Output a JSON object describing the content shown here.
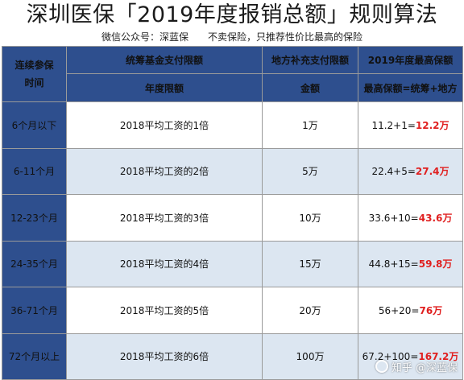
{
  "title": "深圳医保「2019年度报销总额」规则算法",
  "subtitle": "微信公众号：深蓝保　　不卖保险，只推荐性价比最高的保险",
  "table": {
    "header_top": {
      "period": "连续参保\n时间",
      "pool": "统筹基金支付限额",
      "local": "地方补充支付限额",
      "max": "2019年度最高保额"
    },
    "header_sub": {
      "pool": "年度限额",
      "local": "金额",
      "max": "最高保额=统筹+地方"
    },
    "rows": [
      {
        "period": "6个月以下",
        "pool": "2018平均工资的1倍",
        "local": "1万",
        "calc": "11.2+1=",
        "result": "12.2万"
      },
      {
        "period": "6-11个月",
        "pool": "2018平均工资的2倍",
        "local": "5万",
        "calc": "22.4+5=",
        "result": "27.4万"
      },
      {
        "period": "12-23个月",
        "pool": "2018平均工资的3倍",
        "local": "10万",
        "calc": "33.6+10=",
        "result": "43.6万"
      },
      {
        "period": "24-35个月",
        "pool": "2018平均工资的4倍",
        "local": "15万",
        "calc": "44.8+15=",
        "result": "59.8万"
      },
      {
        "period": "36-71个月",
        "pool": "2018平均工资的5倍",
        "local": "20万",
        "calc": "56+20=",
        "result": "76万"
      },
      {
        "period": "72个月以上",
        "pool": "2018平均工资的6倍",
        "local": "100万",
        "calc": "67.2+100=",
        "result": "167.2万"
      }
    ]
  },
  "watermark": {
    "text": "知乎 @深蓝保",
    "icon": "zhihu-logo-icon"
  },
  "colors": {
    "header_bg": "#2e4f8e",
    "stripe": "#dce6f1",
    "highlight": "#e02020"
  }
}
